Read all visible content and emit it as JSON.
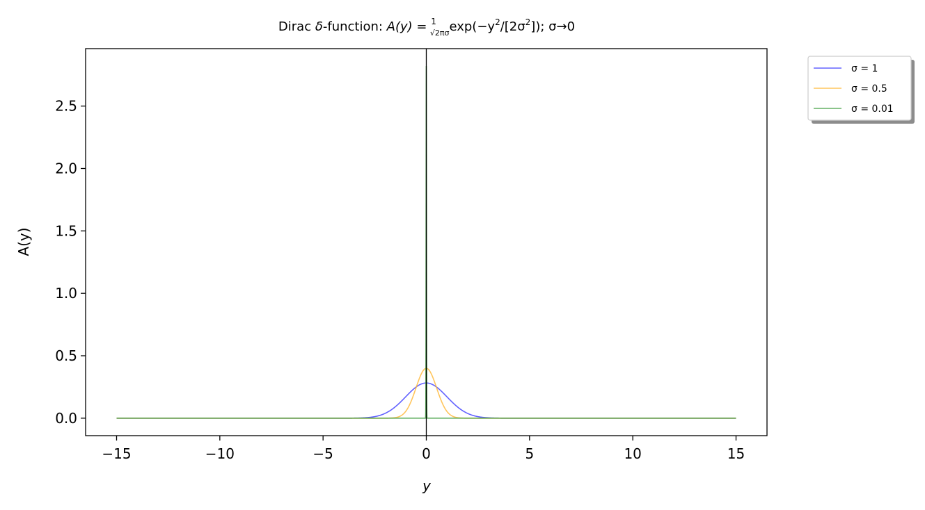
{
  "chart_data": {
    "type": "line",
    "title": {
      "prefix": "Dirac ",
      "delta": "δ",
      "middle": "-function: ",
      "lhs": "A(y) = ",
      "frac_num": "1",
      "frac_den": "√2πσ",
      "rhs_a": "exp(−y",
      "sup1": "2",
      "rhs_b": "/[2σ",
      "sup2": "2",
      "rhs_c": "]); σ→0"
    },
    "xlabel": "y",
    "ylabel": "A(y)",
    "xlim": [
      -16.5,
      16.5
    ],
    "ylim": [
      -0.14,
      2.96
    ],
    "xticks": [
      -15,
      -10,
      -5,
      0,
      5,
      10,
      15
    ],
    "xtick_labels": [
      "−15",
      "−10",
      "−5",
      "0",
      "5",
      "10",
      "15"
    ],
    "yticks": [
      0.0,
      0.5,
      1.0,
      1.5,
      2.0,
      2.5
    ],
    "ytick_labels": [
      "0.0",
      "0.5",
      "1.0",
      "1.5",
      "2.0",
      "2.5"
    ],
    "vline_x": 0,
    "x_range": [
      -15,
      15
    ],
    "legend_position": "outside-upper-right",
    "series": [
      {
        "name": "σ = 1",
        "sigma": 1,
        "color": "#3b3bff",
        "peak": 0.282
      },
      {
        "name": "σ = 0.5",
        "sigma": 0.5,
        "color": "#ffb733",
        "peak": 0.399
      },
      {
        "name": "σ = 0.01",
        "sigma": 0.01,
        "color": "#3c9c3c",
        "peak": 2.821
      }
    ]
  }
}
